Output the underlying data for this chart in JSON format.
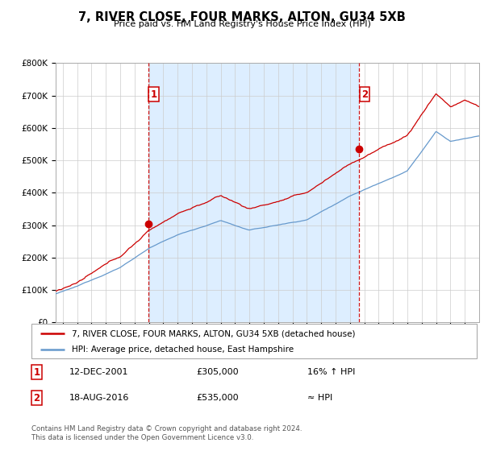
{
  "title": "7, RIVER CLOSE, FOUR MARKS, ALTON, GU34 5XB",
  "subtitle": "Price paid vs. HM Land Registry's House Price Index (HPI)",
  "legend_line1": "7, RIVER CLOSE, FOUR MARKS, ALTON, GU34 5XB (detached house)",
  "legend_line2": "HPI: Average price, detached house, East Hampshire",
  "annotation1_label": "1",
  "annotation1_date": "12-DEC-2001",
  "annotation1_price": "£305,000",
  "annotation1_hpi": "16% ↑ HPI",
  "annotation2_label": "2",
  "annotation2_date": "18-AUG-2016",
  "annotation2_price": "£535,000",
  "annotation2_hpi": "≈ HPI",
  "footnote": "Contains HM Land Registry data © Crown copyright and database right 2024.\nThis data is licensed under the Open Government Licence v3.0.",
  "red_color": "#cc0000",
  "blue_color": "#6699cc",
  "shade_color": "#ddeeff",
  "ylim_min": 0,
  "ylim_max": 800000,
  "yticks": [
    0,
    100000,
    200000,
    300000,
    400000,
    500000,
    600000,
    700000,
    800000
  ],
  "ytick_labels": [
    "£0",
    "£100K",
    "£200K",
    "£300K",
    "£400K",
    "£500K",
    "£600K",
    "£700K",
    "£800K"
  ],
  "xmin": 1995.5,
  "xmax": 2025.0,
  "marker1_x": 2001.95,
  "marker1_y": 305000,
  "marker2_x": 2016.63,
  "marker2_y": 535000,
  "vline1_x": 2001.95,
  "vline2_x": 2016.63,
  "background_color": "#ffffff"
}
